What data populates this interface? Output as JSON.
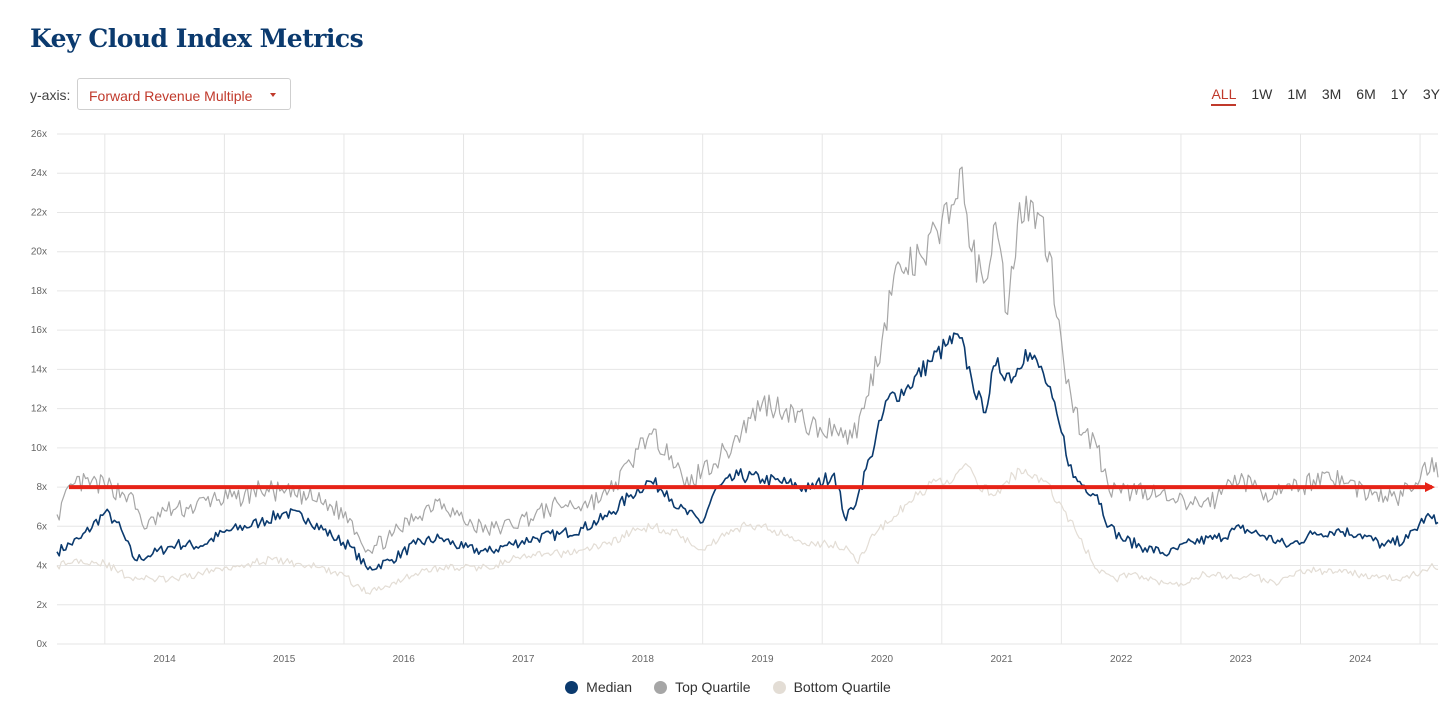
{
  "title": "Key Cloud Index Metrics",
  "yaxis_control": {
    "label": "y-axis:",
    "selected": "Forward Revenue Multiple"
  },
  "range_buttons": [
    {
      "label": "ALL",
      "active": true
    },
    {
      "label": "1W",
      "active": false
    },
    {
      "label": "1M",
      "active": false
    },
    {
      "label": "3M",
      "active": false
    },
    {
      "label": "6M",
      "active": false
    },
    {
      "label": "1Y",
      "active": false
    },
    {
      "label": "3Y",
      "active": false
    }
  ],
  "colors": {
    "median": "#0b3a6e",
    "top_quartile": "#a6a6a6",
    "bottom_quartile": "#e3ddd5",
    "arrow": "#e62317",
    "accent": "#c0392b"
  },
  "chart_data": {
    "type": "line",
    "title": "",
    "xlabel": "",
    "ylabel": "",
    "x_range": [
      2013.1,
      2024.65
    ],
    "ylim": [
      0,
      26
    ],
    "y_ticks": [
      0,
      2,
      4,
      6,
      8,
      10,
      12,
      14,
      16,
      18,
      20,
      22,
      24,
      26
    ],
    "y_tick_labels": [
      "0x",
      "2x",
      "4x",
      "6x",
      "8x",
      "10x",
      "12x",
      "14x",
      "16x",
      "18x",
      "20x",
      "22x",
      "24x",
      "26x"
    ],
    "x_ticks": [
      2014,
      2015,
      2016,
      2017,
      2018,
      2019,
      2020,
      2021,
      2022,
      2023,
      2024
    ],
    "x_tick_labels": [
      "2014",
      "2015",
      "2016",
      "2017",
      "2018",
      "2019",
      "2020",
      "2021",
      "2022",
      "2023",
      "2024"
    ],
    "grid": true,
    "legend_position": "bottom",
    "series": [
      {
        "name": "Median",
        "key": "median",
        "points": [
          [
            2013.1,
            4.7
          ],
          [
            2013.3,
            5.4
          ],
          [
            2013.5,
            6.7
          ],
          [
            2013.6,
            6.2
          ],
          [
            2013.75,
            4.3
          ],
          [
            2013.9,
            4.6
          ],
          [
            2014.1,
            5.1
          ],
          [
            2014.3,
            5.0
          ],
          [
            2014.5,
            5.7
          ],
          [
            2014.8,
            6.2
          ],
          [
            2015.0,
            6.7
          ],
          [
            2015.2,
            6.4
          ],
          [
            2015.4,
            5.5
          ],
          [
            2015.55,
            5.0
          ],
          [
            2015.7,
            3.8
          ],
          [
            2015.9,
            4.3
          ],
          [
            2016.1,
            5.1
          ],
          [
            2016.3,
            5.4
          ],
          [
            2016.5,
            4.9
          ],
          [
            2016.7,
            4.7
          ],
          [
            2016.9,
            5.1
          ],
          [
            2017.1,
            5.4
          ],
          [
            2017.3,
            5.6
          ],
          [
            2017.5,
            5.9
          ],
          [
            2017.7,
            6.5
          ],
          [
            2017.9,
            7.6
          ],
          [
            2018.05,
            8.3
          ],
          [
            2018.2,
            7.8
          ],
          [
            2018.3,
            6.9
          ],
          [
            2018.5,
            6.2
          ],
          [
            2018.6,
            7.8
          ],
          [
            2018.8,
            8.6
          ],
          [
            2019.0,
            8.4
          ],
          [
            2019.2,
            8.2
          ],
          [
            2019.4,
            7.9
          ],
          [
            2019.6,
            8.7
          ],
          [
            2019.7,
            6.3
          ],
          [
            2019.8,
            7.6
          ],
          [
            2019.9,
            9.5
          ],
          [
            2020.05,
            12.5
          ],
          [
            2020.2,
            13.0
          ],
          [
            2020.4,
            14.4
          ],
          [
            2020.55,
            15.3
          ],
          [
            2020.65,
            15.6
          ],
          [
            2020.75,
            13.5
          ],
          [
            2020.85,
            11.8
          ],
          [
            2020.95,
            14.2
          ],
          [
            2021.1,
            13.6
          ],
          [
            2021.2,
            15.0
          ],
          [
            2021.35,
            13.8
          ],
          [
            2021.5,
            10.8
          ],
          [
            2021.6,
            8.5
          ],
          [
            2021.8,
            7.6
          ],
          [
            2021.9,
            6.0
          ],
          [
            2022.0,
            5.4
          ],
          [
            2022.2,
            4.9
          ],
          [
            2022.4,
            4.6
          ],
          [
            2022.6,
            5.2
          ],
          [
            2022.8,
            5.4
          ],
          [
            2023.0,
            5.9
          ],
          [
            2023.2,
            5.5
          ],
          [
            2023.4,
            5.0
          ],
          [
            2023.6,
            5.6
          ],
          [
            2023.8,
            5.8
          ],
          [
            2024.0,
            5.6
          ],
          [
            2024.2,
            5.0
          ],
          [
            2024.4,
            5.4
          ],
          [
            2024.55,
            6.5
          ],
          [
            2024.65,
            6.2
          ]
        ]
      },
      {
        "name": "Top Quartile",
        "key": "top_quartile",
        "points": [
          [
            2013.1,
            6.6
          ],
          [
            2013.25,
            8.2
          ],
          [
            2013.5,
            8.1
          ],
          [
            2013.7,
            7.6
          ],
          [
            2013.85,
            5.9
          ],
          [
            2014.0,
            6.8
          ],
          [
            2014.2,
            6.9
          ],
          [
            2014.4,
            7.4
          ],
          [
            2014.6,
            7.4
          ],
          [
            2014.8,
            7.9
          ],
          [
            2015.0,
            7.7
          ],
          [
            2015.2,
            7.5
          ],
          [
            2015.4,
            7.0
          ],
          [
            2015.55,
            6.4
          ],
          [
            2015.7,
            4.8
          ],
          [
            2015.9,
            5.5
          ],
          [
            2016.1,
            6.5
          ],
          [
            2016.3,
            7.4
          ],
          [
            2016.5,
            6.3
          ],
          [
            2016.7,
            5.8
          ],
          [
            2016.9,
            6.1
          ],
          [
            2017.1,
            6.6
          ],
          [
            2017.3,
            7.1
          ],
          [
            2017.5,
            7.1
          ],
          [
            2017.7,
            7.6
          ],
          [
            2017.9,
            9.2
          ],
          [
            2018.0,
            10.5
          ],
          [
            2018.2,
            10.2
          ],
          [
            2018.35,
            8.0
          ],
          [
            2018.5,
            8.9
          ],
          [
            2018.7,
            9.8
          ],
          [
            2018.9,
            11.5
          ],
          [
            2019.0,
            12.3
          ],
          [
            2019.2,
            12.0
          ],
          [
            2019.35,
            11.3
          ],
          [
            2019.5,
            10.8
          ],
          [
            2019.6,
            11.2
          ],
          [
            2019.75,
            10.5
          ],
          [
            2019.85,
            12.0
          ],
          [
            2020.0,
            15.5
          ],
          [
            2020.1,
            18.8
          ],
          [
            2020.2,
            19.2
          ],
          [
            2020.35,
            19.6
          ],
          [
            2020.5,
            21.6
          ],
          [
            2020.6,
            22.4
          ],
          [
            2020.65,
            24.2
          ],
          [
            2020.75,
            20.0
          ],
          [
            2020.85,
            18.4
          ],
          [
            2020.95,
            21.5
          ],
          [
            2021.05,
            16.8
          ],
          [
            2021.15,
            22.5
          ],
          [
            2021.3,
            22.0
          ],
          [
            2021.4,
            20.0
          ],
          [
            2021.5,
            15.5
          ],
          [
            2021.6,
            11.8
          ],
          [
            2021.7,
            10.8
          ],
          [
            2021.8,
            10.0
          ],
          [
            2021.9,
            7.8
          ],
          [
            2022.0,
            7.7
          ],
          [
            2022.2,
            7.9
          ],
          [
            2022.4,
            7.3
          ],
          [
            2022.6,
            7.1
          ],
          [
            2022.8,
            7.4
          ],
          [
            2022.95,
            8.6
          ],
          [
            2023.1,
            8.0
          ],
          [
            2023.3,
            7.6
          ],
          [
            2023.5,
            8.0
          ],
          [
            2023.7,
            8.7
          ],
          [
            2023.9,
            8.2
          ],
          [
            2024.1,
            7.6
          ],
          [
            2024.3,
            7.4
          ],
          [
            2024.5,
            8.4
          ],
          [
            2024.6,
            9.5
          ],
          [
            2024.65,
            8.5
          ]
        ]
      },
      {
        "name": "Bottom Quartile",
        "key": "bottom_quartile",
        "points": [
          [
            2013.1,
            4.0
          ],
          [
            2013.3,
            4.3
          ],
          [
            2013.5,
            4.1
          ],
          [
            2013.7,
            3.4
          ],
          [
            2013.9,
            3.3
          ],
          [
            2014.1,
            3.3
          ],
          [
            2014.3,
            3.6
          ],
          [
            2014.5,
            3.9
          ],
          [
            2014.7,
            4.1
          ],
          [
            2014.9,
            4.3
          ],
          [
            2015.1,
            4.1
          ],
          [
            2015.3,
            3.9
          ],
          [
            2015.5,
            3.5
          ],
          [
            2015.6,
            3.0
          ],
          [
            2015.7,
            2.6
          ],
          [
            2015.9,
            3.1
          ],
          [
            2016.1,
            3.6
          ],
          [
            2016.3,
            3.9
          ],
          [
            2016.5,
            3.9
          ],
          [
            2016.7,
            3.9
          ],
          [
            2016.9,
            4.3
          ],
          [
            2017.1,
            4.5
          ],
          [
            2017.3,
            4.6
          ],
          [
            2017.5,
            4.8
          ],
          [
            2017.7,
            5.1
          ],
          [
            2017.9,
            5.7
          ],
          [
            2018.1,
            6.0
          ],
          [
            2018.3,
            5.6
          ],
          [
            2018.5,
            4.8
          ],
          [
            2018.7,
            5.7
          ],
          [
            2018.9,
            6.1
          ],
          [
            2019.1,
            5.8
          ],
          [
            2019.3,
            5.3
          ],
          [
            2019.5,
            5.1
          ],
          [
            2019.7,
            5.0
          ],
          [
            2019.8,
            4.1
          ],
          [
            2019.9,
            5.4
          ],
          [
            2020.1,
            6.5
          ],
          [
            2020.3,
            7.6
          ],
          [
            2020.45,
            8.3
          ],
          [
            2020.6,
            8.4
          ],
          [
            2020.7,
            9.2
          ],
          [
            2020.8,
            8.1
          ],
          [
            2020.95,
            7.6
          ],
          [
            2021.1,
            8.6
          ],
          [
            2021.2,
            8.9
          ],
          [
            2021.35,
            8.3
          ],
          [
            2021.5,
            7.1
          ],
          [
            2021.65,
            5.4
          ],
          [
            2021.8,
            3.8
          ],
          [
            2021.95,
            3.3
          ],
          [
            2022.1,
            3.6
          ],
          [
            2022.3,
            3.2
          ],
          [
            2022.5,
            3.1
          ],
          [
            2022.7,
            3.6
          ],
          [
            2022.9,
            3.4
          ],
          [
            2023.1,
            3.5
          ],
          [
            2023.3,
            3.0
          ],
          [
            2023.5,
            3.8
          ],
          [
            2023.7,
            3.7
          ],
          [
            2023.9,
            3.6
          ],
          [
            2024.1,
            3.5
          ],
          [
            2024.3,
            3.3
          ],
          [
            2024.5,
            3.6
          ],
          [
            2024.6,
            4.1
          ],
          [
            2024.65,
            3.8
          ]
        ]
      }
    ],
    "annotations": [
      {
        "type": "arrow",
        "from": [
          2013.2,
          8.0
        ],
        "to": [
          2024.65,
          8.0
        ]
      }
    ]
  }
}
